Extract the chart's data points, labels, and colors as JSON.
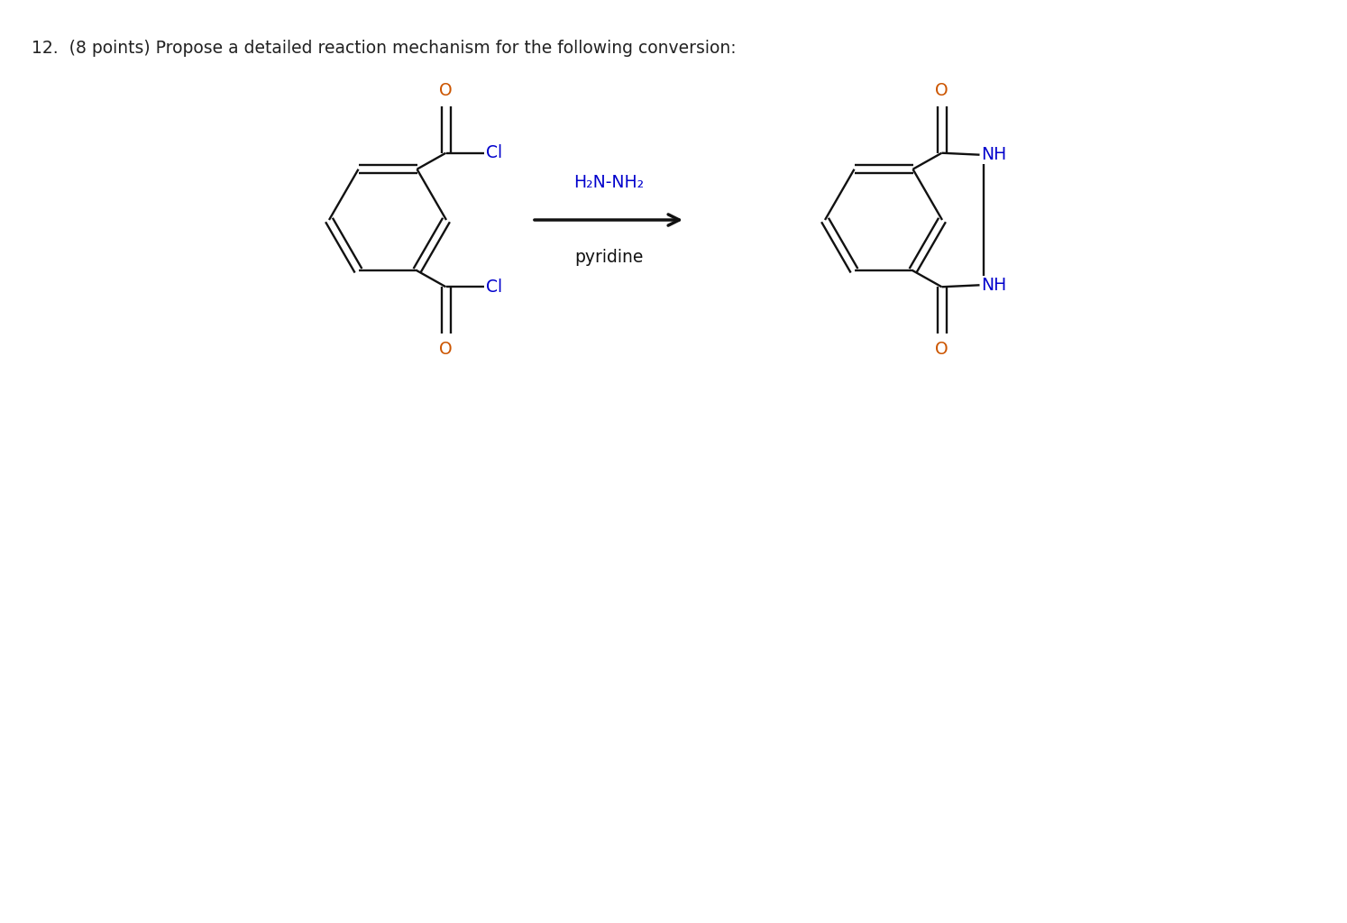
{
  "title_text": "12.  (8 points) Propose a detailed reaction mechanism for the following conversion:",
  "title_fontsize": 13.5,
  "title_color": "#222222",
  "background_color": "#ffffff",
  "reagent_line1": "H₂N-NH₂",
  "reagent_line2": "pyridine",
  "arrow_color": "#111111",
  "line_color": "#111111",
  "line_width": 1.7,
  "label_fontsize": 13.5,
  "reagent_fontsize": 13.5,
  "O_color": "#cc5500",
  "N_color": "#0000cc"
}
